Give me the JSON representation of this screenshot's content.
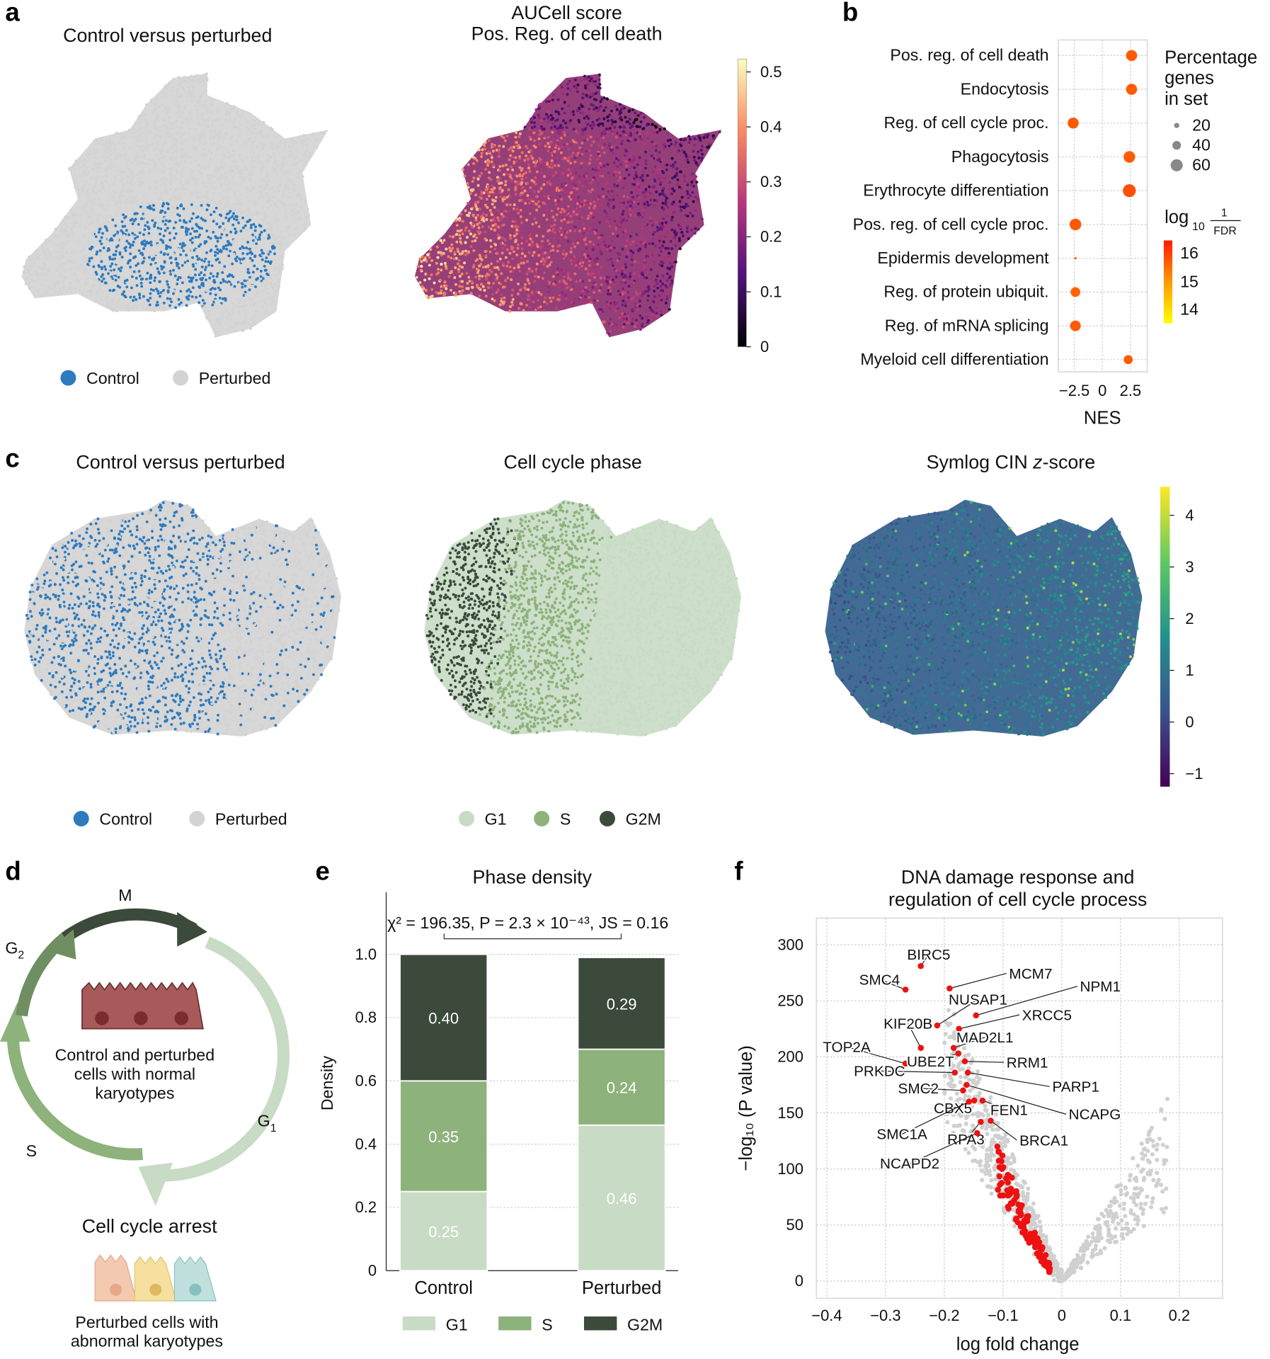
{
  "panel_labels": {
    "a": "a",
    "b": "b",
    "c": "c",
    "d": "d",
    "e": "e",
    "f": "f"
  },
  "colors": {
    "control": "#2e7bbf",
    "perturbed": "#d3d3d3",
    "G1": "#c8dbc4",
    "S": "#8db27b",
    "G2M": "#3c4a3c",
    "dot_red": "#ee1111",
    "nes_dot": "#ff4d0a"
  },
  "panel_a": {
    "left_title": "Control versus perturbed",
    "right_title_line1": "AUCell score",
    "right_title_line2": "Pos. Reg. of cell death",
    "legend": [
      {
        "label": "Control"
      },
      {
        "label": "Perturbed"
      }
    ],
    "colorbar_ticks": [
      "0",
      "0.1",
      "0.2",
      "0.3",
      "0.4",
      "0.5"
    ]
  },
  "panel_c": {
    "titles": {
      "left": "Control versus perturbed",
      "middle": "Cell cycle phase",
      "right_prefix": "Symlog CIN ",
      "right_italic": "z",
      "right_suffix": "-score"
    },
    "legend_left": [
      {
        "label": "Control"
      },
      {
        "label": "Perturbed"
      }
    ],
    "legend_middle": [
      {
        "label": "G1"
      },
      {
        "label": "S"
      },
      {
        "label": "G2M"
      }
    ],
    "colorbar_ticks": [
      "4",
      "3",
      "2",
      "1",
      "0",
      "−1"
    ]
  },
  "panel_d": {
    "M": "M",
    "G2_main": "G",
    "G2_sub": "2",
    "G1_main": "G",
    "G1_sub": "1",
    "S": "S",
    "inner_text": [
      "Control and perturbed",
      "cells with normal",
      "karyotypes"
    ],
    "arrest": "Cell cycle arrest",
    "bottom_text": [
      "Perturbed cells with",
      "abnormal karyotypes"
    ]
  },
  "chart_data": [
    {
      "panel": "b",
      "type": "scatter",
      "xlabel": "NES",
      "x_ticks": [
        "−2.5",
        "0",
        "2.5"
      ],
      "xlim": [
        -3.5,
        4
      ],
      "categories": [
        "Pos. reg. of cell death",
        "Endocytosis",
        "Reg. of cell cycle proc.",
        "Phagocytosis",
        "Erythrocyte differentiation",
        "Pos. reg. of cell cycle proc.",
        "Epidermis development",
        "Reg. of protein ubiquit.",
        "Reg. of mRNA splicing",
        "Myeloid cell differentiation"
      ],
      "nes": [
        2.6,
        2.6,
        -2.6,
        2.4,
        2.4,
        -2.4,
        -2.4,
        -2.4,
        -2.4,
        2.3
      ],
      "percentage_genes": [
        45,
        45,
        45,
        50,
        62,
        50,
        2,
        35,
        42,
        30
      ],
      "log10_inv_fdr": [
        15.6,
        15.6,
        15.6,
        15.6,
        15.7,
        15.6,
        15.5,
        15.5,
        15.6,
        15.6
      ],
      "size_legend": {
        "title": [
          "Percentage",
          "genes",
          "in set"
        ],
        "values": [
          "20",
          "40",
          "60"
        ]
      },
      "color_legend": {
        "title_main": "log",
        "title_sub": "10",
        "title_num": "1",
        "title_den": "FDR",
        "ticks": [
          "16",
          "15",
          "14"
        ]
      }
    },
    {
      "panel": "e",
      "type": "bar",
      "stacked": true,
      "title": "Phase density",
      "annotation": "χ² = 196.35, P = 2.3 × 10⁻⁴³, JS = 0.16",
      "categories": [
        "Control",
        "Perturbed"
      ],
      "series": [
        {
          "name": "G1",
          "values": [
            0.25,
            0.46
          ]
        },
        {
          "name": "S",
          "values": [
            0.35,
            0.24
          ]
        },
        {
          "name": "G2M",
          "values": [
            0.4,
            0.29
          ]
        }
      ],
      "value_labels": [
        [
          "0.25",
          "0.35",
          "0.40"
        ],
        [
          "0.46",
          "0.24",
          "0.29"
        ]
      ],
      "ylabel": "Density",
      "ylim": [
        0,
        1.0
      ],
      "y_ticks": [
        "0",
        "0.2",
        "0.4",
        "0.6",
        "0.8",
        "1.0"
      ]
    },
    {
      "panel": "f",
      "type": "scatter",
      "title_line1": "DNA damage response and",
      "title_line2": "regulation of cell cycle process",
      "xlabel": "log fold change",
      "ylabel": "−log₁₀ (P value)",
      "xlim": [
        -0.42,
        0.27
      ],
      "ylim": [
        -15,
        322
      ],
      "x_ticks": [
        "−0.4",
        "−0.3",
        "−0.2",
        "−0.1",
        "0",
        "0.1",
        "0.2"
      ],
      "y_ticks": [
        "0",
        "50",
        "100",
        "150",
        "200",
        "250",
        "300"
      ],
      "labeled_genes": [
        {
          "gene": "BIRC5",
          "lfc": -0.24,
          "nlp": 281
        },
        {
          "gene": "SMC4",
          "lfc": -0.266,
          "nlp": 260
        },
        {
          "gene": "MCM7",
          "lfc": -0.191,
          "nlp": 261
        },
        {
          "gene": "NUSAP1",
          "lfc": -0.212,
          "nlp": 228
        },
        {
          "gene": "NPM1",
          "lfc": -0.146,
          "nlp": 237
        },
        {
          "gene": "XRCC5",
          "lfc": -0.175,
          "nlp": 225
        },
        {
          "gene": "KIF20B",
          "lfc": -0.24,
          "nlp": 208
        },
        {
          "gene": "MAD2L1",
          "lfc": -0.184,
          "nlp": 208
        },
        {
          "gene": "TOP2A",
          "lfc": -0.266,
          "nlp": 194
        },
        {
          "gene": "UBE2T",
          "lfc": -0.176,
          "nlp": 203
        },
        {
          "gene": "RRM1",
          "lfc": -0.165,
          "nlp": 196
        },
        {
          "gene": "PRKDC",
          "lfc": -0.182,
          "nlp": 186
        },
        {
          "gene": "PARP1",
          "lfc": -0.16,
          "nlp": 186
        },
        {
          "gene": "SMC2",
          "lfc": -0.168,
          "nlp": 170
        },
        {
          "gene": "NCAPG",
          "lfc": -0.162,
          "nlp": 175
        },
        {
          "gene": "CBX5",
          "lfc": -0.149,
          "nlp": 161
        },
        {
          "gene": "FEN1",
          "lfc": -0.135,
          "nlp": 161
        },
        {
          "gene": "SMC1A",
          "lfc": -0.158,
          "nlp": 160
        },
        {
          "gene": "RPA3",
          "lfc": -0.138,
          "nlp": 142
        },
        {
          "gene": "BRCA1",
          "lfc": -0.121,
          "nlp": 143
        },
        {
          "gene": "NCAPD2",
          "lfc": -0.144,
          "nlp": 132
        }
      ]
    }
  ]
}
